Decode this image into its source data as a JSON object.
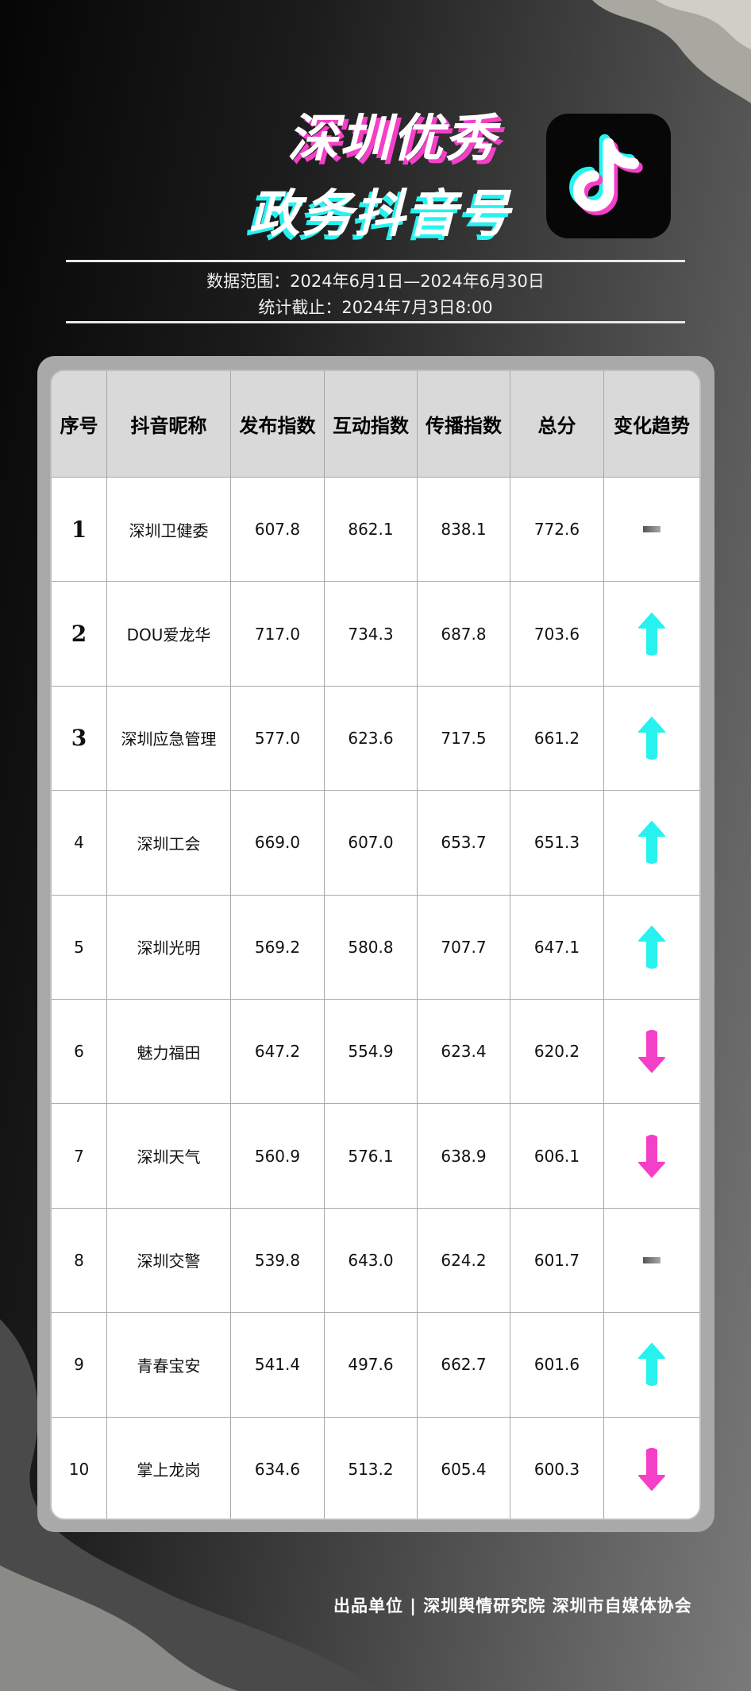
{
  "header": {
    "title_line1": "深圳优秀",
    "title_line2": "政务抖音号",
    "logo": "douyin-logo-icon",
    "data_range": "数据范围：2024年6月1日—2024年6月30日",
    "cutoff": "统计截止：2024年7月3日8:00"
  },
  "colors": {
    "up": "#27f2f0",
    "down": "#f43fc8",
    "flat": "#666666"
  },
  "table": {
    "columns": [
      "序号",
      "抖音昵称",
      "发布指数",
      "互动指数",
      "传播指数",
      "总分",
      "变化趋势"
    ],
    "rows": [
      {
        "rank": "1",
        "name": "深圳卫健委",
        "publish": "607.8",
        "interact": "862.1",
        "spread": "838.1",
        "total": "772.6",
        "trend": "flat"
      },
      {
        "rank": "2",
        "name": "DOU爱龙华",
        "publish": "717.0",
        "interact": "734.3",
        "spread": "687.8",
        "total": "703.6",
        "trend": "up"
      },
      {
        "rank": "3",
        "name": "深圳应急管理",
        "publish": "577.0",
        "interact": "623.6",
        "spread": "717.5",
        "total": "661.2",
        "trend": "up"
      },
      {
        "rank": "4",
        "name": "深圳工会",
        "publish": "669.0",
        "interact": "607.0",
        "spread": "653.7",
        "total": "651.3",
        "trend": "up"
      },
      {
        "rank": "5",
        "name": "深圳光明",
        "publish": "569.2",
        "interact": "580.8",
        "spread": "707.7",
        "total": "647.1",
        "trend": "up"
      },
      {
        "rank": "6",
        "name": "魅力福田",
        "publish": "647.2",
        "interact": "554.9",
        "spread": "623.4",
        "total": "620.2",
        "trend": "down"
      },
      {
        "rank": "7",
        "name": "深圳天气",
        "publish": "560.9",
        "interact": "576.1",
        "spread": "638.9",
        "total": "606.1",
        "trend": "down"
      },
      {
        "rank": "8",
        "name": "深圳交警",
        "publish": "539.8",
        "interact": "643.0",
        "spread": "624.2",
        "total": "601.7",
        "trend": "flat"
      },
      {
        "rank": "9",
        "name": "青春宝安",
        "publish": "541.4",
        "interact": "497.6",
        "spread": "662.7",
        "total": "601.6",
        "trend": "up"
      },
      {
        "rank": "10",
        "name": "掌上龙岗",
        "publish": "634.6",
        "interact": "513.2",
        "spread": "605.4",
        "total": "600.3",
        "trend": "down"
      }
    ]
  },
  "footer": {
    "text": "出品单位 | 深圳舆情研究院 深圳市自媒体协会"
  }
}
